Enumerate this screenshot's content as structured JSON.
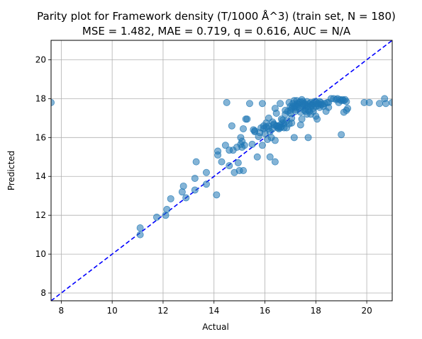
{
  "chart_data": {
    "type": "scatter",
    "title": "Parity plot for Framework density (T/1000 Å^3) (train set, N = 180)",
    "subtitle": "MSE = 1.482, MAE = 0.719, q = 0.616, AUC = N/A",
    "xlabel": "Actual",
    "ylabel": "Predicted",
    "xlim": [
      7.6,
      21.0
    ],
    "ylim": [
      7.6,
      21.0
    ],
    "xticks": [
      8,
      10,
      12,
      14,
      16,
      18,
      20
    ],
    "yticks": [
      8,
      10,
      12,
      14,
      16,
      18,
      20
    ],
    "grid": true,
    "colors": {
      "points": "#1f77b4",
      "parity_line": "#0000ff",
      "grid": "#b0b0b0"
    },
    "parity_line": {
      "style": "dashed",
      "from": [
        7.6,
        7.6
      ],
      "to": [
        21.0,
        21.0
      ]
    },
    "points": [
      [
        7.6,
        17.8
      ],
      [
        11.1,
        11.35
      ],
      [
        11.1,
        11.0
      ],
      [
        11.75,
        11.9
      ],
      [
        12.1,
        12.0
      ],
      [
        12.15,
        12.3
      ],
      [
        12.3,
        12.85
      ],
      [
        12.75,
        13.2
      ],
      [
        12.8,
        13.5
      ],
      [
        12.9,
        12.9
      ],
      [
        13.25,
        13.3
      ],
      [
        13.25,
        13.9
      ],
      [
        13.3,
        14.75
      ],
      [
        13.7,
        13.6
      ],
      [
        13.7,
        14.2
      ],
      [
        14.1,
        13.05
      ],
      [
        14.15,
        15.1
      ],
      [
        14.15,
        15.3
      ],
      [
        14.3,
        14.75
      ],
      [
        14.45,
        15.6
      ],
      [
        14.5,
        17.8
      ],
      [
        14.6,
        14.55
      ],
      [
        14.6,
        15.35
      ],
      [
        14.7,
        16.6
      ],
      [
        14.75,
        15.35
      ],
      [
        14.8,
        14.2
      ],
      [
        14.9,
        15.5
      ],
      [
        14.95,
        14.7
      ],
      [
        15.0,
        14.3
      ],
      [
        15.05,
        15.65
      ],
      [
        15.1,
        15.5
      ],
      [
        15.1,
        15.8
      ],
      [
        15.15,
        14.3
      ],
      [
        15.15,
        16.45
      ],
      [
        15.2,
        15.6
      ],
      [
        15.25,
        16.95
      ],
      [
        15.3,
        16.95
      ],
      [
        15.4,
        17.75
      ],
      [
        15.5,
        15.65
      ],
      [
        15.55,
        16.4
      ],
      [
        15.6,
        16.35
      ],
      [
        15.6,
        16.3
      ],
      [
        15.7,
        15.0
      ],
      [
        15.75,
        16.05
      ],
      [
        15.8,
        16.25
      ],
      [
        15.85,
        16.5
      ],
      [
        15.9,
        15.6
      ],
      [
        15.9,
        17.75
      ],
      [
        15.95,
        16.45
      ],
      [
        16.0,
        16.2
      ],
      [
        16.05,
        16.55
      ],
      [
        16.1,
        15.9
      ],
      [
        16.15,
        16.6
      ],
      [
        16.15,
        17.0
      ],
      [
        16.2,
        16.3
      ],
      [
        16.2,
        15.0
      ],
      [
        16.25,
        16.0
      ],
      [
        16.3,
        16.45
      ],
      [
        16.35,
        16.7
      ],
      [
        16.4,
        14.75
      ],
      [
        16.4,
        15.85
      ],
      [
        16.4,
        17.5
      ],
      [
        16.45,
        16.6
      ],
      [
        16.45,
        17.25
      ],
      [
        16.5,
        16.6
      ],
      [
        16.5,
        16.5
      ],
      [
        16.55,
        16.45
      ],
      [
        16.6,
        16.65
      ],
      [
        16.6,
        17.75
      ],
      [
        16.65,
        16.55
      ],
      [
        16.7,
        16.75
      ],
      [
        16.7,
        16.9
      ],
      [
        16.75,
        16.5
      ],
      [
        16.8,
        17.2
      ],
      [
        16.8,
        17.4
      ],
      [
        16.85,
        16.85
      ],
      [
        16.85,
        16.5
      ],
      [
        16.9,
        17.35
      ],
      [
        16.95,
        17.8
      ],
      [
        17.0,
        17.25
      ],
      [
        17.0,
        17.4
      ],
      [
        17.05,
        17.5
      ],
      [
        17.05,
        17.0
      ],
      [
        17.1,
        17.6
      ],
      [
        17.1,
        17.75
      ],
      [
        17.15,
        17.55
      ],
      [
        17.15,
        16.0
      ],
      [
        17.2,
        17.45
      ],
      [
        17.2,
        17.35
      ],
      [
        17.25,
        17.75
      ],
      [
        17.25,
        17.9
      ],
      [
        17.3,
        17.6
      ],
      [
        17.3,
        17.7
      ],
      [
        17.35,
        17.5
      ],
      [
        17.4,
        16.65
      ],
      [
        17.4,
        17.3
      ],
      [
        17.45,
        16.95
      ],
      [
        17.5,
        17.6
      ],
      [
        17.5,
        17.75
      ],
      [
        17.5,
        17.85
      ],
      [
        17.55,
        17.4
      ],
      [
        17.6,
        17.5
      ],
      [
        17.6,
        17.7
      ],
      [
        17.65,
        17.2
      ],
      [
        17.65,
        17.85
      ],
      [
        17.7,
        17.6
      ],
      [
        17.7,
        16.0
      ],
      [
        17.75,
        17.75
      ],
      [
        17.75,
        17.35
      ],
      [
        17.8,
        17.55
      ],
      [
        17.8,
        17.8
      ],
      [
        17.85,
        17.65
      ],
      [
        17.85,
        17.7
      ],
      [
        17.9,
        17.5
      ],
      [
        17.9,
        17.75
      ],
      [
        17.95,
        17.85
      ],
      [
        18.0,
        17.1
      ],
      [
        18.0,
        17.6
      ],
      [
        18.05,
        17.75
      ],
      [
        18.05,
        16.95
      ],
      [
        18.1,
        17.75
      ],
      [
        18.1,
        17.65
      ],
      [
        18.15,
        17.55
      ],
      [
        18.2,
        17.7
      ],
      [
        18.2,
        17.8
      ],
      [
        18.25,
        17.7
      ],
      [
        18.3,
        17.6
      ],
      [
        18.35,
        17.75
      ],
      [
        18.4,
        17.35
      ],
      [
        18.45,
        17.8
      ],
      [
        18.5,
        17.55
      ],
      [
        18.5,
        17.8
      ],
      [
        18.6,
        18.0
      ],
      [
        18.7,
        18.0
      ],
      [
        18.8,
        17.95
      ],
      [
        18.85,
        18.0
      ],
      [
        18.9,
        17.8
      ],
      [
        18.95,
        17.95
      ],
      [
        19.0,
        17.9
      ],
      [
        19.0,
        16.15
      ],
      [
        19.05,
        17.95
      ],
      [
        19.1,
        17.9
      ],
      [
        19.1,
        17.3
      ],
      [
        19.15,
        17.95
      ],
      [
        19.2,
        17.4
      ],
      [
        19.2,
        17.85
      ],
      [
        19.25,
        17.5
      ],
      [
        19.9,
        17.8
      ],
      [
        20.1,
        17.8
      ],
      [
        20.5,
        17.75
      ],
      [
        20.7,
        18.0
      ],
      [
        20.75,
        17.75
      ],
      [
        21.0,
        17.8
      ],
      [
        17.45,
        17.95
      ],
      [
        17.55,
        17.65
      ],
      [
        17.6,
        17.35
      ],
      [
        16.95,
        16.7
      ],
      [
        16.6,
        16.5
      ],
      [
        16.3,
        16.8
      ],
      [
        16.75,
        16.7
      ],
      [
        17.0,
        17.6
      ],
      [
        17.2,
        17.65
      ],
      [
        17.35,
        17.8
      ],
      [
        17.4,
        17.85
      ],
      [
        17.7,
        17.4
      ],
      [
        17.8,
        17.2
      ],
      [
        18.0,
        17.85
      ],
      [
        17.15,
        17.9
      ],
      [
        16.55,
        16.55
      ],
      [
        16.65,
        16.95
      ],
      [
        15.95,
        16.6
      ],
      [
        16.05,
        16.75
      ],
      [
        16.35,
        16.65
      ],
      [
        17.9,
        17.35
      ],
      [
        18.15,
        17.85
      ],
      [
        17.25,
        17.55
      ],
      [
        17.55,
        17.75
      ],
      [
        17.05,
        16.75
      ],
      [
        16.15,
        16.45
      ],
      [
        15.05,
        16.0
      ]
    ]
  }
}
